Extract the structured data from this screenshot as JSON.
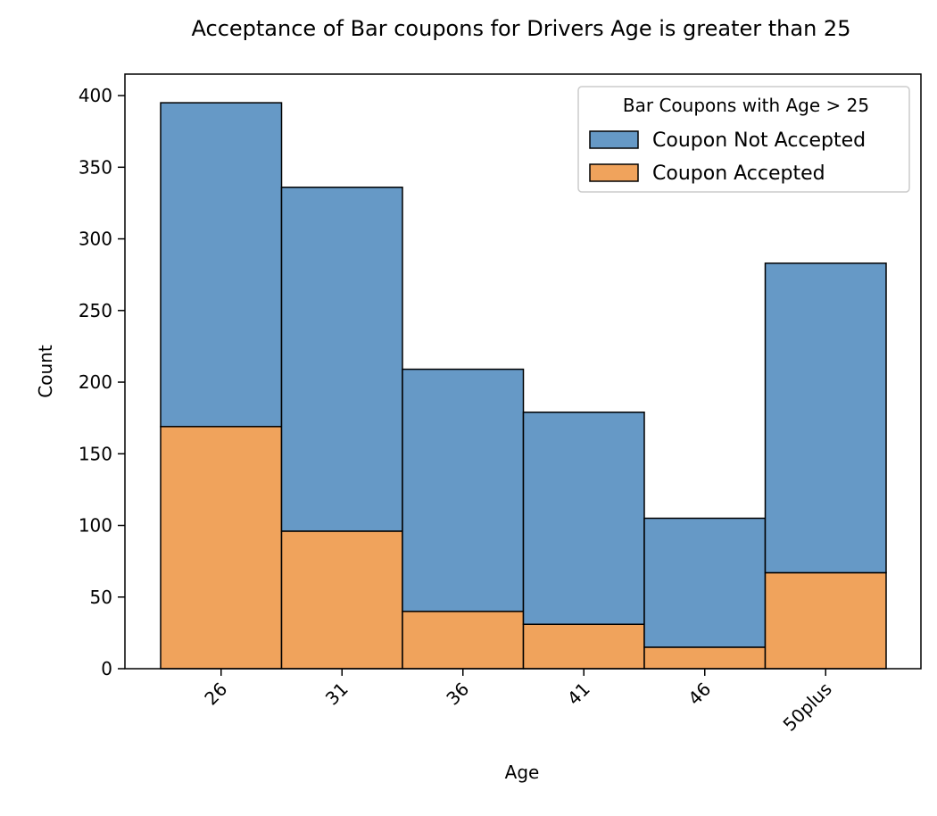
{
  "chart_data": {
    "type": "bar",
    "stacked": true,
    "title": "Acceptance of Bar coupons for Drivers Age is greater than 25",
    "xlabel": "Age",
    "ylabel": "Count",
    "categories": [
      "26",
      "31",
      "36",
      "41",
      "46",
      "50plus"
    ],
    "series": [
      {
        "name": "Coupon Accepted",
        "color": "#f0a35c",
        "values": [
          169,
          96,
          40,
          31,
          15,
          67
        ]
      },
      {
        "name": "Coupon Not Accepted",
        "color": "#6699c6",
        "values": [
          226,
          240,
          169,
          148,
          90,
          216
        ]
      }
    ],
    "ylim": [
      0,
      415
    ],
    "yticks": [
      0,
      50,
      100,
      150,
      200,
      250,
      300,
      350,
      400
    ],
    "legend": {
      "title": "Bar Coupons with Age > 25",
      "placement": "top-right",
      "entries": [
        "Coupon Not Accepted",
        "Coupon Accepted"
      ]
    },
    "grid": false
  }
}
